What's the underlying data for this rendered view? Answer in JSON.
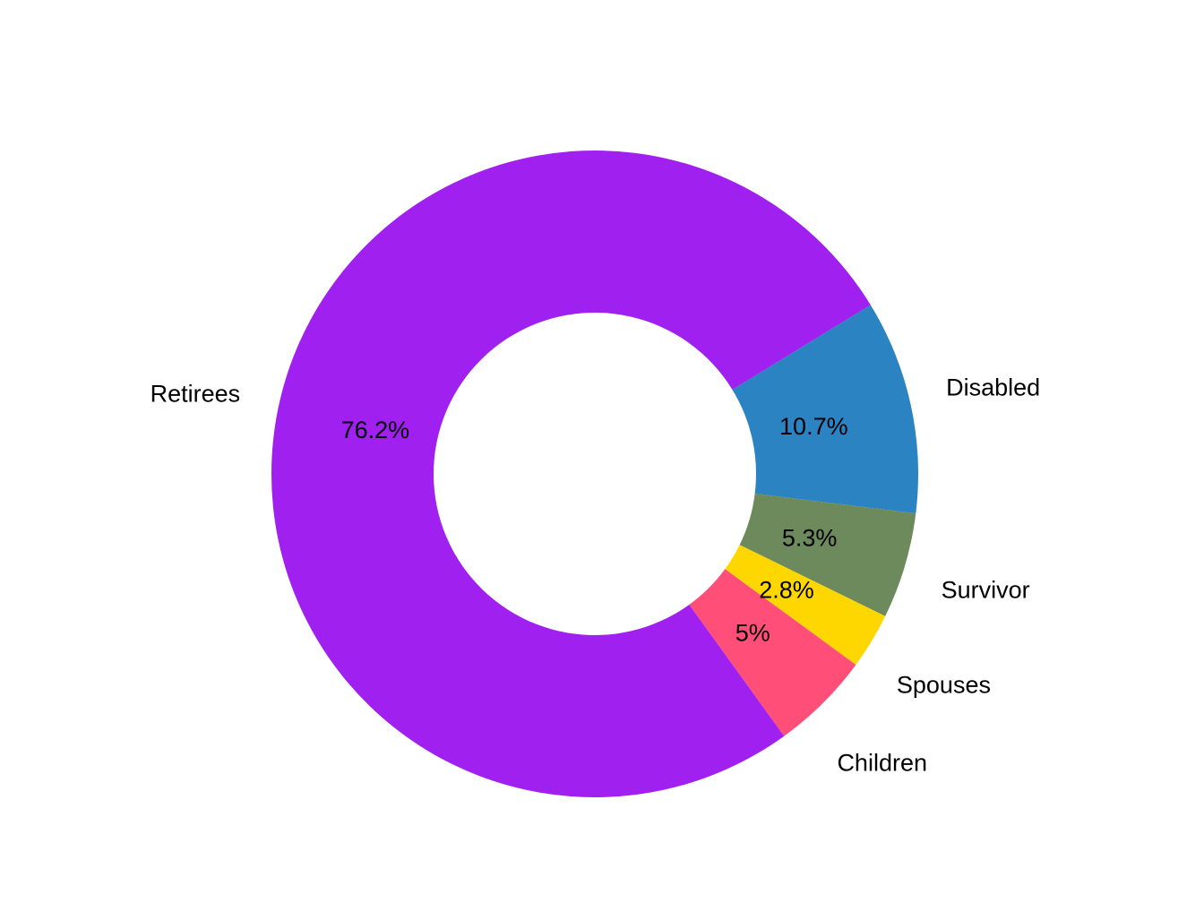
{
  "chart_data": {
    "type": "pie",
    "donut": true,
    "categories": [
      "Disabled",
      "Survivor",
      "Spouses",
      "Children",
      "Retirees"
    ],
    "values": [
      10.7,
      5.3,
      2.8,
      5.0,
      76.2
    ],
    "labels": [
      "10.7%",
      "5.3%",
      "2.8%",
      "5%",
      "76.2%"
    ],
    "colors": [
      "#2B83C2",
      "#6C8A5C",
      "#FFD700",
      "#FF4F78",
      "#A020F0"
    ],
    "title": "",
    "legend": "none"
  }
}
